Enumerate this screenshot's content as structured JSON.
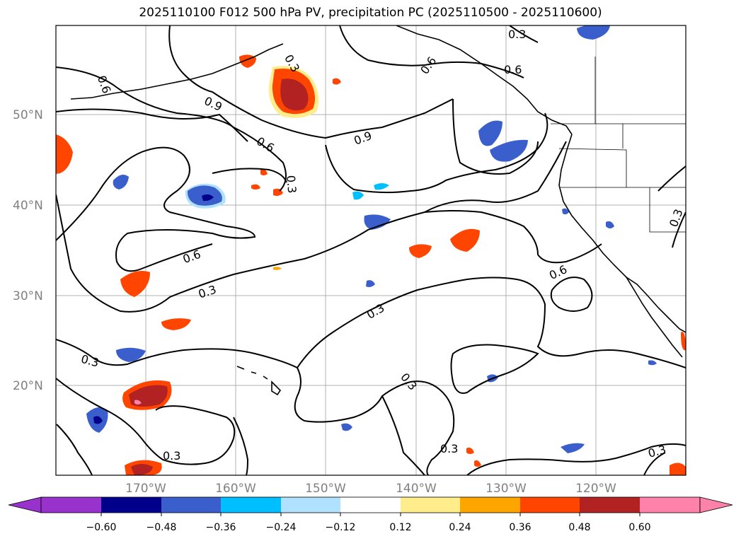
{
  "title": "2025110100 F012 500 hPa PV, precipitation PC (2025110500 - 2025110600)",
  "map": {
    "lat_labels": [
      "50°N",
      "40°N",
      "30°N",
      "20°N"
    ],
    "lon_labels": [
      "170°W",
      "160°W",
      "150°W",
      "140°W",
      "130°W",
      "120°W"
    ],
    "contour_labels": [
      "0.6",
      "0.9",
      "0.6",
      "0.3",
      "0.9",
      "0.6",
      "0.6",
      "0.3",
      "0.3",
      "0.6",
      "0.3",
      "0.3",
      "0.3",
      "0.3",
      "0.3",
      "0.3",
      "0.3",
      "0.3",
      "0.6"
    ]
  },
  "colorbar": {
    "ticks": [
      "−0.60",
      "−0.48",
      "−0.36",
      "−0.24",
      "−0.12",
      "0.12",
      "0.24",
      "0.36",
      "0.48",
      "0.60"
    ],
    "colors": [
      "#9932CC",
      "#00008B",
      "#3A5FCD",
      "#00BFFF",
      "#B0E2FF",
      "#FFFFFF",
      "#FFEC8B",
      "#FFA500",
      "#FF4500",
      "#B22222",
      "#FF82AB"
    ]
  },
  "palette": {
    "neg_deep": "#00008B",
    "neg_mid": "#3A5FCD",
    "neg_light": "#00BFFF",
    "neg_pale": "#B0E2FF",
    "pos_pale": "#FFEC8B",
    "pos_light": "#FFA500",
    "pos_mid": "#FF4500",
    "pos_deep": "#B22222",
    "pos_max": "#FF82AB"
  }
}
